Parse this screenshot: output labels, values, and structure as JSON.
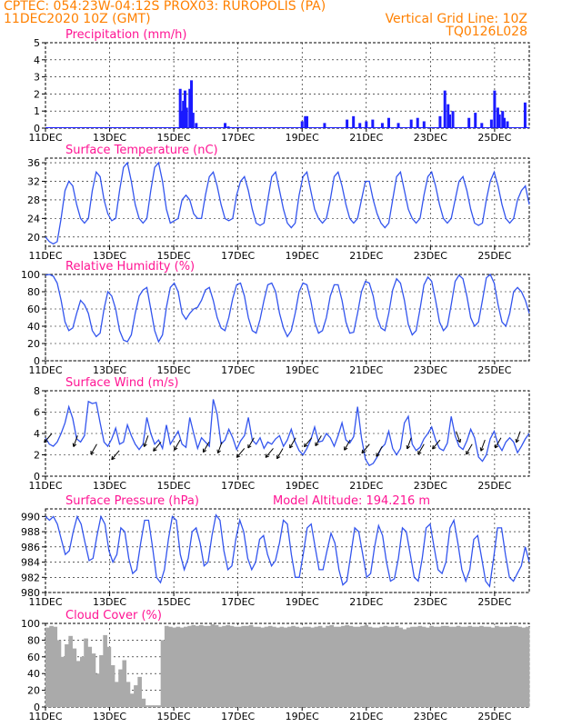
{
  "header": {
    "line1_left": "CPTEC:   054:23W-04:12S   PROX03: RUROPOLIS (PA)",
    "line2_left": "11DEC2020 10Z (GMT)",
    "line2_right": "Vertical Grid Line: 10Z",
    "line3_right": "TQ0126L028",
    "altitude": "Model Altitude: 194.216 m"
  },
  "colors": {
    "header": "#ff8000",
    "panel_title": "#ff1493",
    "line": "#3355ee",
    "bar": "#1a1aff",
    "cloud": "#aaaaaa",
    "grid": "#000000",
    "arrow": "#000000"
  },
  "x_labels": [
    "11DEC",
    "13DEC",
    "15DEC",
    "17DEC",
    "19DEC",
    "21DEC",
    "23DEC",
    "25DEC"
  ],
  "chart_data": [
    {
      "type": "bar",
      "title": "Precipitation (mm/h)",
      "x_start": "11DEC2020 10Z",
      "x_end": "26DEC2020 12Z",
      "x_step_hours": 3,
      "ylim": [
        0,
        5
      ],
      "yticks": [
        0,
        1,
        2,
        3,
        4,
        5
      ],
      "grid": "dashed",
      "bars": [
        [
          4.0,
          0.05
        ],
        [
          4.1,
          0.05
        ],
        [
          4.2,
          2.3
        ],
        [
          4.25,
          1.0
        ],
        [
          4.3,
          1.6
        ],
        [
          4.35,
          2.2
        ],
        [
          4.4,
          1.2
        ],
        [
          4.5,
          2.3
        ],
        [
          4.55,
          2.8
        ],
        [
          4.6,
          0.9
        ],
        [
          4.7,
          0.3
        ],
        [
          5.6,
          0.3
        ],
        [
          5.7,
          0.1
        ],
        [
          8.0,
          0.4
        ],
        [
          8.1,
          0.7
        ],
        [
          8.15,
          0.7
        ],
        [
          8.7,
          0.3
        ],
        [
          9.4,
          0.5
        ],
        [
          9.6,
          0.7
        ],
        [
          9.8,
          0.3
        ],
        [
          10.0,
          0.4
        ],
        [
          10.2,
          0.5
        ],
        [
          10.5,
          0.3
        ],
        [
          10.7,
          0.6
        ],
        [
          11.0,
          0.3
        ],
        [
          11.4,
          0.5
        ],
        [
          11.6,
          0.6
        ],
        [
          11.8,
          0.4
        ],
        [
          12.3,
          0.7
        ],
        [
          12.45,
          2.2
        ],
        [
          12.55,
          1.4
        ],
        [
          12.6,
          0.8
        ],
        [
          12.7,
          1.0
        ],
        [
          13.2,
          0.6
        ],
        [
          13.4,
          0.9
        ],
        [
          13.6,
          0.3
        ],
        [
          13.9,
          0.5
        ],
        [
          14.0,
          2.2
        ],
        [
          14.1,
          1.2
        ],
        [
          14.15,
          0.8
        ],
        [
          14.25,
          1.0
        ],
        [
          14.3,
          0.6
        ],
        [
          14.4,
          0.4
        ],
        [
          14.95,
          1.5
        ]
      ]
    },
    {
      "type": "line",
      "title": "Surface Temperature (nC)",
      "x_start": "11DEC2020 10Z",
      "x_end": "26DEC2020 12Z",
      "x_step_hours": 3,
      "ylim": [
        18,
        37
      ],
      "yticks": [
        20,
        24,
        28,
        32,
        36
      ],
      "grid": "dashed",
      "values": [
        20,
        19,
        18.5,
        19,
        24,
        30,
        32,
        31,
        27,
        24,
        23,
        24,
        30,
        34,
        33,
        28,
        25,
        23.5,
        24,
        30,
        35,
        36,
        32,
        27,
        24,
        23,
        24,
        30,
        35,
        36,
        32,
        26,
        23,
        23.5,
        24,
        28,
        29,
        28,
        25,
        24,
        24,
        29,
        33,
        34,
        31,
        27,
        24,
        23.5,
        24,
        29,
        32,
        33,
        30,
        26,
        23,
        22.5,
        23,
        28,
        33,
        34,
        30,
        26,
        23,
        22,
        23,
        29,
        33,
        34,
        30,
        26,
        24,
        23,
        24,
        28,
        33,
        34,
        31,
        27,
        24,
        23,
        24,
        28,
        32,
        32,
        28,
        25,
        23,
        22,
        23,
        28,
        33,
        34,
        30,
        26,
        24,
        23,
        24,
        29,
        33,
        34,
        31,
        27,
        24,
        23,
        24,
        28,
        32,
        33,
        30,
        26,
        23,
        22.5,
        23,
        28,
        32,
        34,
        31,
        27,
        24,
        23,
        24,
        28,
        30,
        31,
        27
      ]
    },
    {
      "type": "line",
      "title": "Relative Humidity (%)",
      "x_start": "11DEC2020 10Z",
      "x_end": "26DEC2020 12Z",
      "x_step_hours": 3,
      "ylim": [
        0,
        100
      ],
      "yticks": [
        0,
        20,
        40,
        60,
        80,
        100
      ],
      "grid": "dashed",
      "values": [
        99,
        100,
        98,
        90,
        70,
        45,
        35,
        38,
        55,
        70,
        65,
        55,
        35,
        28,
        32,
        60,
        80,
        75,
        60,
        35,
        24,
        22,
        30,
        55,
        75,
        82,
        85,
        60,
        35,
        22,
        30,
        62,
        85,
        90,
        80,
        55,
        48,
        55,
        60,
        62,
        70,
        82,
        85,
        70,
        50,
        38,
        35,
        50,
        72,
        88,
        90,
        75,
        50,
        35,
        32,
        48,
        70,
        88,
        90,
        80,
        55,
        38,
        28,
        35,
        55,
        80,
        90,
        88,
        70,
        45,
        32,
        35,
        50,
        75,
        88,
        88,
        70,
        45,
        32,
        33,
        55,
        80,
        92,
        90,
        75,
        50,
        38,
        35,
        55,
        82,
        95,
        90,
        70,
        42,
        30,
        35,
        60,
        88,
        97,
        92,
        70,
        45,
        35,
        40,
        65,
        92,
        99,
        95,
        75,
        50,
        40,
        45,
        70,
        96,
        100,
        90,
        65,
        45,
        40,
        55,
        80,
        85,
        80,
        70,
        55
      ]
    },
    {
      "type": "line",
      "title": "Surface Wind (m/s)",
      "x_start": "11DEC2020 10Z",
      "x_end": "26DEC2020 12Z",
      "x_step_hours": 3,
      "ylim": [
        0,
        8
      ],
      "yticks": [
        0,
        2,
        4,
        6,
        8
      ],
      "grid": "dashed",
      "values": [
        3.6,
        3.0,
        2.8,
        3.2,
        4.0,
        5.0,
        6.5,
        5.4,
        3.5,
        3.2,
        3.8,
        7.0,
        6.8,
        6.9,
        5.0,
        3.2,
        2.8,
        3.5,
        4.5,
        3.0,
        3.2,
        4.8,
        3.8,
        3.0,
        2.5,
        3.0,
        5.5,
        4.0,
        3.0,
        3.4,
        2.6,
        4.8,
        3.0,
        3.6,
        4.2,
        3.0,
        2.7,
        5.5,
        4.0,
        2.6,
        3.6,
        3.2,
        2.8,
        7.2,
        5.8,
        3.0,
        3.4,
        4.4,
        3.6,
        2.5,
        3.3,
        3.8,
        5.5,
        3.4,
        3.0,
        3.6,
        2.6,
        3.2,
        3.0,
        3.5,
        3.8,
        2.8,
        3.4,
        4.4,
        3.2,
        2.4,
        2.0,
        2.6,
        3.4,
        4.6,
        3.2,
        3.3,
        4.0,
        3.6,
        2.8,
        3.8,
        5.0,
        3.4,
        3.1,
        3.7,
        6.5,
        3.6,
        1.6,
        1.0,
        1.2,
        1.8,
        2.6,
        3.0,
        4.2,
        2.6,
        2.0,
        2.6,
        5.0,
        5.6,
        3.0,
        2.4,
        2.7,
        3.5,
        4.0,
        4.6,
        3.4,
        2.6,
        2.4,
        3.1,
        5.6,
        3.8,
        2.8,
        2.5,
        3.3,
        4.4,
        3.6,
        1.8,
        1.4,
        2.0,
        3.5,
        4.2,
        3.0,
        2.4,
        3.2,
        3.6,
        3.2,
        2.2,
        2.8,
        3.5,
        4.0
      ],
      "arrows": [
        [
          0.2,
          4.0,
          230
        ],
        [
          1.0,
          3.8,
          250
        ],
        [
          1.6,
          3.0,
          240
        ],
        [
          2.3,
          2.4,
          230
        ],
        [
          3.2,
          3.8,
          250
        ],
        [
          3.6,
          3.2,
          230
        ],
        [
          4.2,
          3.4,
          240
        ],
        [
          5.1,
          3.2,
          240
        ],
        [
          5.5,
          3.2,
          250
        ],
        [
          6.2,
          2.6,
          230
        ],
        [
          6.5,
          3.6,
          240
        ],
        [
          7.1,
          2.6,
          230
        ],
        [
          7.4,
          2.6,
          240
        ],
        [
          7.8,
          3.6,
          240
        ],
        [
          8.3,
          3.6,
          230
        ],
        [
          8.6,
          3.8,
          240
        ],
        [
          9.5,
          3.4,
          240
        ],
        [
          10.1,
          3.0,
          230
        ],
        [
          10.5,
          2.8,
          240
        ],
        [
          11.4,
          3.6,
          250
        ],
        [
          11.8,
          3.0,
          240
        ],
        [
          12.3,
          3.4,
          230
        ],
        [
          12.8,
          4.2,
          290
        ],
        [
          13.3,
          3.0,
          240
        ],
        [
          13.7,
          3.4,
          250
        ],
        [
          14.2,
          3.6,
          240
        ],
        [
          14.8,
          4.2,
          250
        ]
      ]
    },
    {
      "type": "line",
      "title": "Surface Pressure (hPa)",
      "x_start": "11DEC2020 10Z",
      "x_end": "26DEC2020 12Z",
      "x_step_hours": 3,
      "ylim": [
        980,
        991
      ],
      "yticks": [
        980,
        982,
        984,
        986,
        988,
        990
      ],
      "grid": "dashed",
      "values": [
        990,
        989.5,
        990,
        989,
        987,
        985,
        985.5,
        988,
        990,
        989,
        986.5,
        984.2,
        984.5,
        987.5,
        990,
        989,
        985.5,
        984,
        985,
        988.5,
        988,
        984.5,
        982.5,
        983,
        986.5,
        989.5,
        989.5,
        986,
        982,
        981.3,
        983,
        987,
        990,
        989.5,
        985,
        983,
        984.5,
        988,
        988.5,
        986.5,
        983.5,
        984,
        987.5,
        990.2,
        989.5,
        985.5,
        983,
        983.5,
        987,
        989.5,
        988,
        984.5,
        983,
        984,
        987,
        987.5,
        985,
        983.5,
        984.2,
        986.5,
        989.5,
        989,
        985,
        982,
        982,
        985,
        988.5,
        989,
        986,
        983,
        983,
        985.5,
        987.8,
        986.5,
        983,
        981,
        981.5,
        985,
        988.5,
        988,
        985,
        982,
        982.5,
        986,
        988.8,
        987.5,
        984,
        981.5,
        981.8,
        984.5,
        988.5,
        988,
        985,
        982,
        981.5,
        984.5,
        988.5,
        989,
        986,
        983,
        982.5,
        984,
        988.5,
        989.5,
        986.5,
        983,
        981.5,
        983,
        987,
        987.5,
        984.5,
        981.5,
        980.8,
        984.5,
        988.5,
        988.5,
        985,
        982,
        981.5,
        982.5,
        983.5,
        986,
        984
      ]
    },
    {
      "type": "bar",
      "title": "Cloud Cover (%)",
      "x_start": "11DEC2020 10Z",
      "x_end": "26DEC2020 12Z",
      "x_step_hours": 3,
      "ylim": [
        0,
        100
      ],
      "yticks": [
        0,
        20,
        40,
        60,
        80,
        100
      ],
      "grid": "dashed",
      "values": [
        95,
        97,
        96,
        80,
        60,
        75,
        85,
        70,
        55,
        60,
        82,
        72,
        64,
        40,
        62,
        86,
        72,
        50,
        30,
        45,
        56,
        30,
        16,
        26,
        36,
        10,
        2,
        2,
        2,
        2,
        80,
        97,
        96,
        95,
        96,
        95,
        96,
        97,
        98,
        97,
        98,
        97,
        97,
        99,
        98,
        96,
        97,
        98,
        97,
        96,
        96,
        97,
        97,
        98,
        96,
        96,
        95,
        96,
        97,
        96,
        95,
        96,
        95,
        96,
        97,
        96,
        95,
        96,
        96,
        95,
        96,
        97,
        95,
        97,
        98,
        96,
        96,
        97,
        98,
        97,
        96,
        96,
        97,
        98,
        96,
        95,
        95,
        96,
        97,
        96,
        96,
        97,
        95,
        93,
        95,
        96,
        96,
        97,
        96,
        95,
        97,
        96,
        96,
        97,
        97,
        96,
        96,
        97,
        96,
        96,
        97,
        96,
        96,
        97,
        96,
        96,
        95,
        97,
        96,
        96,
        96,
        97,
        97,
        96,
        95,
        96
      ]
    }
  ]
}
